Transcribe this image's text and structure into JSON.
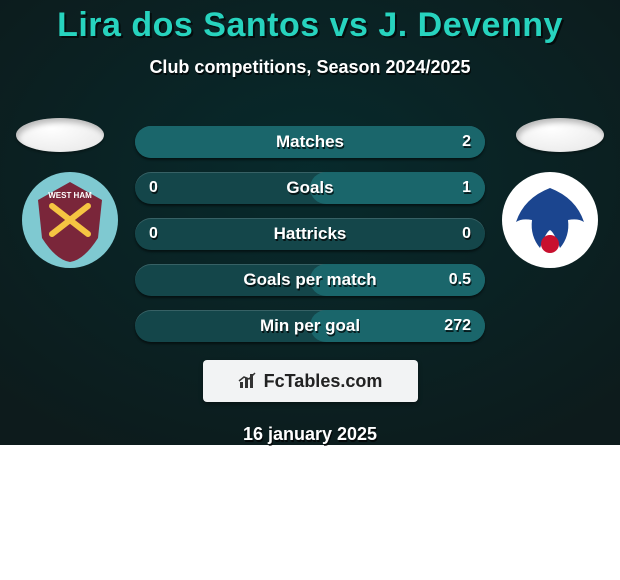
{
  "title": "Lira dos Santos vs J. Devenny",
  "subtitle": "Club competitions, Season 2024/2025",
  "date": "16 january 2025",
  "footer": "FcTables.com",
  "colors": {
    "title": "#27d3be",
    "bg_top": "#072a2c",
    "bg_bottom": "#0d1b1c",
    "row_base": "#14464a",
    "row_bar": "#1a666b",
    "face": "#e6e6e6",
    "foot_bg": "#f2f3f4"
  },
  "crests": {
    "left": {
      "name": "west-ham",
      "ring": "#7fc9d1",
      "body": "#7a263a",
      "accent": "#f5c542"
    },
    "right": {
      "name": "crystal-palace",
      "ring": "#ffffff",
      "body": "#1b458f",
      "accent": "#c8102e"
    }
  },
  "rows": [
    {
      "label": "Matches",
      "left": "",
      "right": "2",
      "bar": {
        "side": "right",
        "frac": 1.0
      }
    },
    {
      "label": "Goals",
      "left": "0",
      "right": "1",
      "bar": {
        "side": "right",
        "frac": 0.5
      }
    },
    {
      "label": "Hattricks",
      "left": "0",
      "right": "0",
      "bar": null
    },
    {
      "label": "Goals per match",
      "left": "",
      "right": "0.5",
      "bar": {
        "side": "right",
        "frac": 0.5
      }
    },
    {
      "label": "Min per goal",
      "left": "",
      "right": "272",
      "bar": {
        "side": "right",
        "frac": 0.5
      }
    }
  ]
}
